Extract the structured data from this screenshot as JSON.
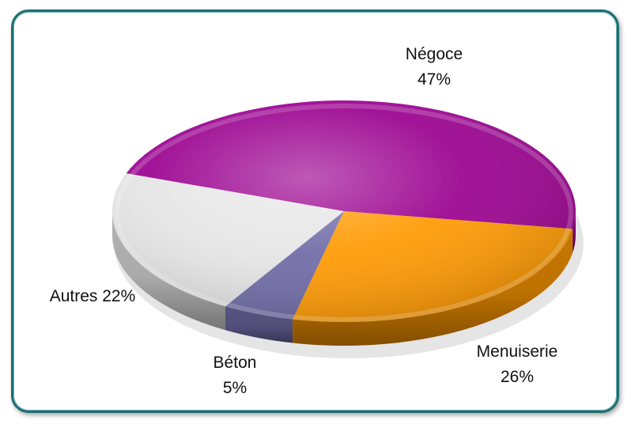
{
  "chart_data": {
    "type": "pie",
    "title": "",
    "slices": [
      {
        "name": "Négoce",
        "value": 47,
        "label": "47%",
        "color": "#9a008f"
      },
      {
        "name": "Menuiserie",
        "value": 26,
        "label": "26%",
        "color": "#ff9900"
      },
      {
        "name": "Béton",
        "value": 5,
        "label": "5%",
        "color": "#6e6aa6"
      },
      {
        "name": "Autres",
        "value": 22,
        "label": "22%",
        "color": "#e6e6e6"
      }
    ],
    "label_style": "category and percent outside slices",
    "legend": "none",
    "three_d": true
  }
}
